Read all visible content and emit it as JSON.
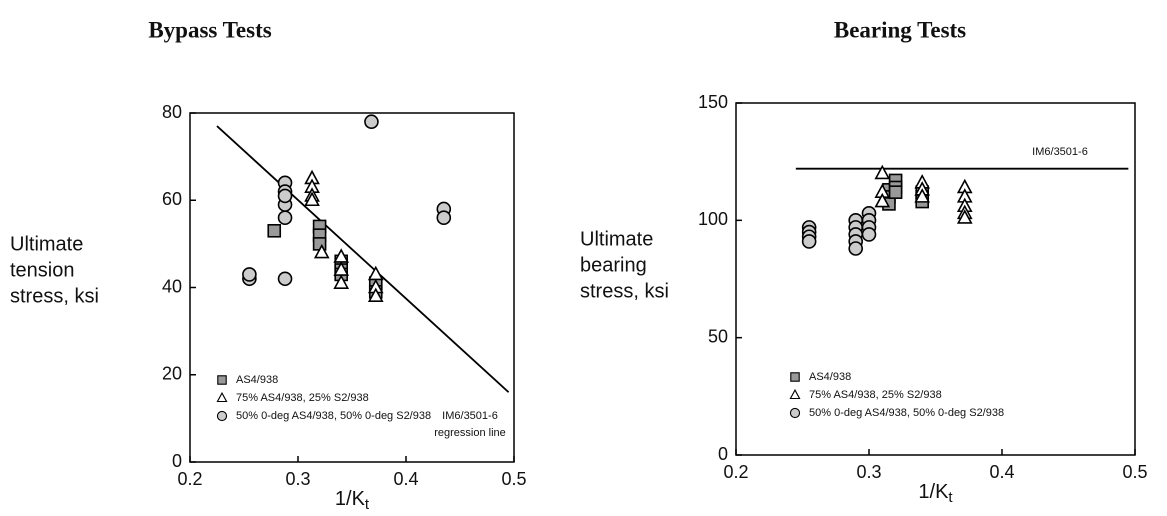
{
  "chart_data": [
    {
      "type": "scatter",
      "title": "Bypass Tests",
      "x_label": "1/K",
      "x_label_sub": "t",
      "y_label": [
        "Ultimate",
        "tension",
        "stress, ksi"
      ],
      "xlim": [
        0.2,
        0.5
      ],
      "xticks": [
        0.2,
        0.3,
        0.4,
        0.5
      ],
      "ylim": [
        0,
        80
      ],
      "yticks": [
        0,
        20,
        40,
        60,
        80
      ],
      "legend": "lower left",
      "series": [
        {
          "name": "AS4/938",
          "marker": "square",
          "color": "#999999",
          "x": [
            0.278,
            0.32,
            0.32,
            0.32,
            0.34,
            0.34,
            0.34,
            0.372,
            0.372
          ],
          "values": [
            53,
            54,
            52,
            50,
            46,
            44,
            43,
            41,
            39
          ]
        },
        {
          "name": "75% AS4/938, 25% S2/938",
          "marker": "triangle",
          "color": "#ffffff",
          "x": [
            0.313,
            0.313,
            0.313,
            0.313,
            0.322,
            0.34,
            0.34,
            0.34,
            0.372,
            0.372,
            0.372
          ],
          "values": [
            65,
            63,
            61,
            60,
            48,
            47,
            44,
            41,
            43,
            40,
            38
          ]
        },
        {
          "name": "50% 0-deg AS4/938, 50% 0-deg S2/938",
          "marker": "circle",
          "color": "#cccccc",
          "x": [
            0.255,
            0.255,
            0.288,
            0.288,
            0.288,
            0.288,
            0.288,
            0.288,
            0.368,
            0.435,
            0.435
          ],
          "values": [
            42,
            43,
            64,
            62,
            59,
            56,
            42,
            61,
            78,
            58,
            56
          ]
        }
      ],
      "reference_line": {
        "x": [
          0.225,
          0.495
        ],
        "y": [
          77,
          16
        ]
      },
      "annotations": [
        "IM6/3501-6",
        "regression line"
      ]
    },
    {
      "type": "scatter",
      "title": "Bearing Tests",
      "x_label": "1/K",
      "x_label_sub": "t",
      "y_label": [
        "Ultimate",
        "bearing",
        "stress, ksi"
      ],
      "xlim": [
        0.2,
        0.5
      ],
      "xticks": [
        0.2,
        0.3,
        0.4,
        0.5
      ],
      "ylim": [
        0,
        150
      ],
      "yticks": [
        0,
        50,
        100,
        150
      ],
      "legend": "lower left",
      "series": [
        {
          "name": "AS4/938",
          "marker": "square",
          "color": "#999999",
          "x": [
            0.315,
            0.315,
            0.315,
            0.32,
            0.32,
            0.32,
            0.34,
            0.34,
            0.34
          ],
          "values": [
            113,
            110,
            107,
            117,
            114,
            112,
            112,
            110,
            108
          ]
        },
        {
          "name": "75% AS4/938, 25% S2/938",
          "marker": "triangle",
          "color": "#ffffff",
          "x": [
            0.31,
            0.31,
            0.31,
            0.34,
            0.34,
            0.34,
            0.372,
            0.372,
            0.372,
            0.372,
            0.372
          ],
          "values": [
            120,
            112,
            108,
            116,
            113,
            110,
            114,
            110,
            106,
            103,
            101
          ]
        },
        {
          "name": "50% 0-deg AS4/938, 50% 0-deg S2/938",
          "marker": "circle",
          "color": "#cccccc",
          "x": [
            0.255,
            0.255,
            0.255,
            0.255,
            0.29,
            0.29,
            0.29,
            0.29,
            0.29,
            0.3,
            0.3,
            0.3,
            0.3
          ],
          "values": [
            97,
            95,
            93,
            91,
            100,
            97,
            94,
            91,
            88,
            103,
            100,
            97,
            94
          ]
        }
      ],
      "reference_line": {
        "x": [
          0.245,
          0.495
        ],
        "y": [
          122,
          122
        ]
      },
      "annotations": [
        "IM6/3501-6"
      ]
    }
  ]
}
